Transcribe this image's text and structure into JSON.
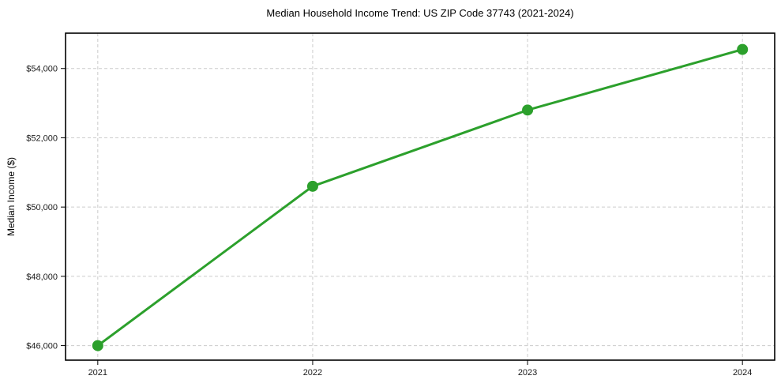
{
  "chart_data": {
    "type": "line",
    "title": "Median Household Income Trend: US ZIP Code 37743 (2021-2024)",
    "ylabel": "Median Income ($)",
    "xlabel": "",
    "categories": [
      "2021",
      "2022",
      "2023",
      "2024"
    ],
    "x": [
      2021,
      2022,
      2023,
      2024
    ],
    "series": [
      {
        "name": "Median Household Income",
        "values": [
          46000,
          50600,
          52800,
          54550
        ]
      }
    ],
    "xlim": [
      2020.85,
      2024.15
    ],
    "ylim": [
      45580,
      55020
    ],
    "yticks": [
      46000,
      48000,
      50000,
      52000,
      54000
    ],
    "ytick_labels": [
      "$46,000",
      "$48,000",
      "$50,000",
      "$52,000",
      "$54,000"
    ],
    "grid": true,
    "grid_style": "dashed",
    "legend_position": "none",
    "line_color": "#2ca02c",
    "marker": "circle",
    "marker_diameter_px": 14,
    "grid_color": "#cccccc",
    "spine_color": "#000000",
    "tick_label_color": "#1a1a1a",
    "background": "#ffffff"
  }
}
